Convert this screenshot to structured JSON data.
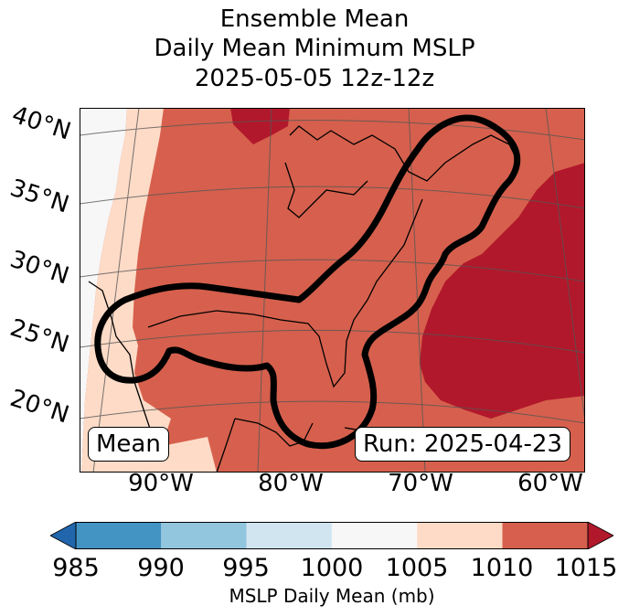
{
  "title": {
    "line1": "Ensemble Mean",
    "line2": "Daily Mean Minimum MSLP",
    "line3": "2025-05-05 12z-12z"
  },
  "map": {
    "lat_labels": [
      "40°N",
      "35°N",
      "30°N",
      "25°N",
      "20°N"
    ],
    "lon_labels": [
      "90°W",
      "80°W",
      "70°W",
      "60°W"
    ],
    "mean_label": "Mean",
    "run_label": "Run: 2025-04-23"
  },
  "colorbar": {
    "ticks": [
      "985",
      "990",
      "995",
      "1000",
      "1005",
      "1010",
      "1015"
    ],
    "label": "MSLP Daily Mean (mb)",
    "colors": [
      "#2166ac",
      "#4393c3",
      "#92c5de",
      "#d1e5f0",
      "#f7f7f7",
      "#fddbc7",
      "#d6604d",
      "#b2182b"
    ]
  }
}
